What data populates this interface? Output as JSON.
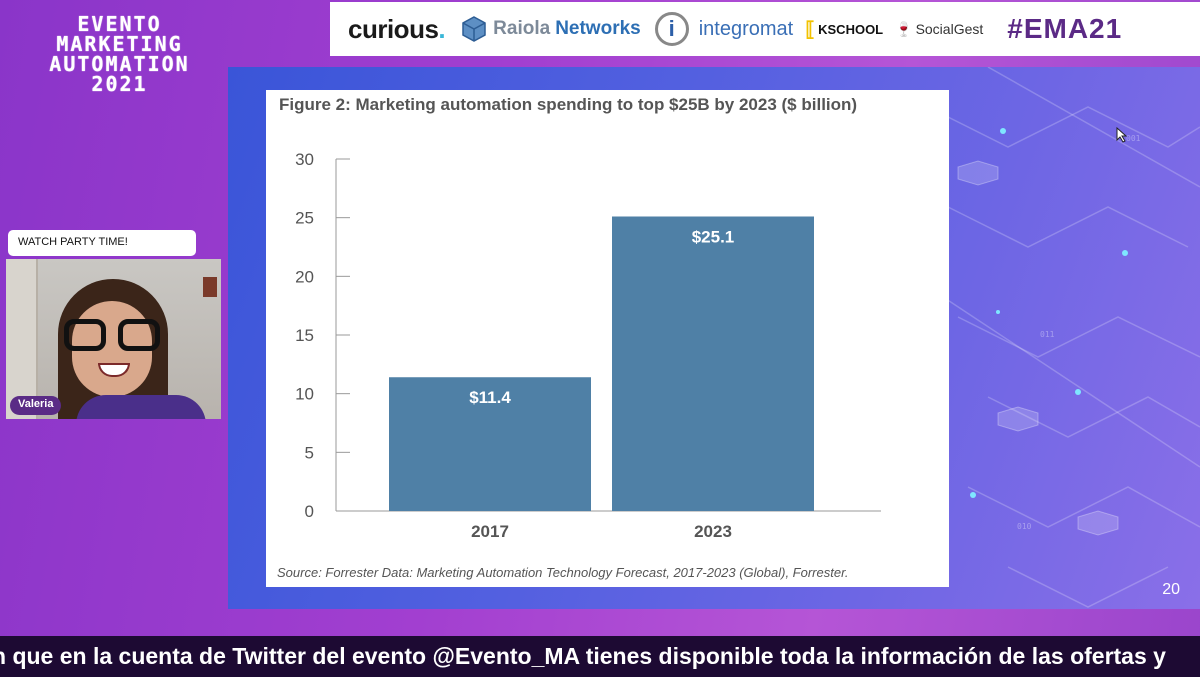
{
  "event": {
    "logo_lines": [
      "EVENTO",
      "MARKETING",
      "AUTOMATION",
      "2021"
    ]
  },
  "sponsors": {
    "curious_name": "curious",
    "curious_dot": ".",
    "raiola_a": "Raiola",
    "raiola_b": "Networks",
    "integromat_letter": "i",
    "integromat_name": "integromat",
    "kschool_name": "KSCHOOL",
    "socialgest_name": "SocialGest",
    "hashtag": "#EMA21"
  },
  "webcam": {
    "chat_message": "WATCH PARTY TIME!",
    "participant_name": "Valeria"
  },
  "slide": {
    "number": "20"
  },
  "chart_data": {
    "type": "bar",
    "title": "Figure 2: Marketing automation spending to top $25B by 2023 ($ billion)",
    "source": "Source: Forrester Data: Marketing Automation Technology Forecast, 2017-2023 (Global), Forrester.",
    "categories": [
      "2017",
      "2023"
    ],
    "values": [
      11.4,
      25.1
    ],
    "data_labels": [
      "$11.4",
      "$25.1"
    ],
    "ylim": [
      0,
      30
    ],
    "yticks": [
      0,
      5,
      10,
      15,
      20,
      25,
      30
    ],
    "bar_color": "#4f80a6",
    "xlabel": "",
    "ylabel": ""
  },
  "ticker": {
    "text": "n que en la cuenta de Twitter del evento @Evento_MA tienes disponible toda la información de las ofertas y"
  }
}
